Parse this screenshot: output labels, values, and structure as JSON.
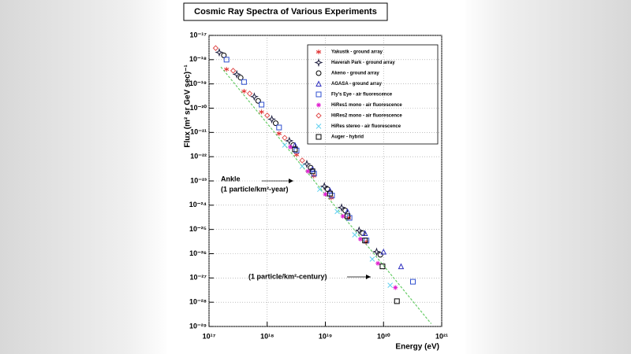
{
  "chart_data": {
    "type": "scatter",
    "title": "Cosmic Ray Spectra of Various Experiments",
    "x_label": "Energy (eV)",
    "y_label": "Flux (m² sr GeV sec)⁻¹",
    "x_log": true,
    "y_log": true,
    "grid": true,
    "legend_position": "upper right",
    "xlim": [
      1e+17,
      1e+21
    ],
    "ylim": [
      1e-29,
      1e-17
    ],
    "xticks": [
      {
        "value": 1e+17,
        "label": "10¹⁷"
      },
      {
        "value": 1e+18,
        "label": "10¹⁸"
      },
      {
        "value": 1e+19,
        "label": "10¹⁹"
      },
      {
        "value": 1e+20,
        "label": "10²⁰"
      },
      {
        "value": 1e+21,
        "label": "10²¹"
      }
    ],
    "yticks": [
      {
        "value": 1e-29,
        "label": "10⁻²⁹"
      },
      {
        "value": 1e-28,
        "label": "10⁻²⁸"
      },
      {
        "value": 1e-27,
        "label": "10⁻²⁷"
      },
      {
        "value": 1e-26,
        "label": "10⁻²⁶"
      },
      {
        "value": 1e-25,
        "label": "10⁻²⁵"
      },
      {
        "value": 1e-24,
        "label": "10⁻²⁴"
      },
      {
        "value": 1e-23,
        "label": "10⁻²³"
      },
      {
        "value": 1e-22,
        "label": "10⁻²²"
      },
      {
        "value": 1e-21,
        "label": "10⁻²¹"
      },
      {
        "value": 1e-20,
        "label": "10⁻²⁰"
      },
      {
        "value": 1e-19,
        "label": "10⁻¹⁹"
      },
      {
        "value": 1e-18,
        "label": "10⁻¹⁸"
      },
      {
        "value": 1e-17,
        "label": "10⁻¹⁷"
      }
    ],
    "annotations": [
      "Ankle",
      "(1 particle/km²-year)",
      "(1 particle/km²-century)"
    ],
    "fit_line": {
      "color": "#66cc66",
      "x": [
        1.6e+17,
        6.6e+20
      ],
      "y": [
        5e-19,
        1.3e-29
      ]
    },
    "series": [
      {
        "name": "Yakustk - ground array",
        "color": "#e03030",
        "marker": "star",
        "x": [
          2e+17,
          4e+17,
          8e+17,
          1.6e+18,
          3.2e+18,
          6.3e+18,
          1.26e+19,
          2.5e+19,
          5e+19
        ],
        "values": [
          4e-19,
          5e-20,
          7e-21,
          9e-22,
          1.2e-22,
          1.6e-23,
          2e-24,
          3e-25,
          3e-26
        ]
      },
      {
        "name": "Haverah Park - ground array",
        "color": "#202040",
        "marker": "cross4",
        "x": [
          1.5e+17,
          3e+17,
          6e+17,
          1.2e+18,
          2.4e+18,
          4.8e+18,
          9.6e+18,
          1.9e+19,
          3.8e+19,
          7.6e+19
        ],
        "values": [
          2e-18,
          2.5e-19,
          3e-20,
          3.5e-21,
          4.5e-22,
          5e-23,
          6e-24,
          8e-25,
          9e-26,
          1.2e-26
        ]
      },
      {
        "name": "Akeno - ground array",
        "color": "#000000",
        "marker": "circle",
        "x": [
          1.8e+17,
          3.5e+17,
          7e+17,
          1.4e+18,
          2.8e+18,
          5.6e+18,
          1.1e+19,
          2.2e+19,
          4.4e+19,
          8.8e+19
        ],
        "values": [
          1.5e-18,
          1.8e-19,
          2e-20,
          2.4e-21,
          3e-22,
          3.5e-23,
          4.5e-24,
          6e-25,
          7e-26,
          9e-27
        ]
      },
      {
        "name": "AGASA - ground array",
        "color": "#3030c0",
        "marker": "triangle",
        "x": [
          3e+18,
          6e+18,
          1.2e+19,
          2.4e+19,
          4.8e+19,
          1e+20,
          2e+20
        ],
        "values": [
          3e-22,
          3e-23,
          4e-24,
          5.5e-25,
          7e-26,
          1.2e-26,
          3e-27
        ]
      },
      {
        "name": "Fly's Eye - air fluorescence",
        "color": "#3050d0",
        "marker": "square",
        "x": [
          2e+17,
          4e+17,
          8e+17,
          1.6e+18,
          3.2e+18,
          6.4e+18,
          1.3e+19,
          2.6e+19,
          5.1e+19,
          3.2e+20
        ],
        "values": [
          1e-18,
          1.2e-19,
          1.4e-20,
          1.6e-21,
          1.8e-22,
          2e-23,
          2.5e-24,
          3e-25,
          3.5e-26,
          7e-28
        ]
      },
      {
        "name": "HiRes1 mono - air fluorescence",
        "color": "#e020d0",
        "marker": "asterisk",
        "x": [
          2.5e+18,
          5e+18,
          1e+19,
          2e+19,
          4e+19,
          8e+19,
          1.6e+20
        ],
        "values": [
          2.5e-22,
          2.5e-23,
          2.8e-24,
          3.5e-25,
          4e-26,
          4e-27,
          4e-28
        ]
      },
      {
        "name": "HiRes2 mono - air fluorescence",
        "color": "#e05050",
        "marker": "diamond",
        "x": [
          1.3e+17,
          2.6e+17,
          5e+17,
          1e+18,
          2e+18,
          4e+18
        ],
        "values": [
          3e-18,
          3.5e-19,
          4e-20,
          5e-21,
          6e-22,
          7e-23
        ]
      },
      {
        "name": "HiRes stereo - air fluorescence",
        "color": "#60d0f0",
        "marker": "cross",
        "x": [
          2e+18,
          4e+18,
          8e+18,
          1.6e+19,
          3.2e+19,
          6.4e+19,
          1.3e+20
        ],
        "values": [
          3e-22,
          4e-23,
          4.5e-24,
          5.5e-25,
          6e-26,
          6e-27,
          5e-28
        ]
      },
      {
        "name": "Auger - hybrid",
        "color": "#000000",
        "marker": "square",
        "x": [
          3e+18,
          6e+18,
          1.2e+19,
          2.4e+19,
          4.8e+19,
          9.6e+19,
          1.7e+20
        ],
        "values": [
          2e-22,
          2.5e-23,
          3e-24,
          3.5e-25,
          3.5e-26,
          3e-27,
          1.1e-28
        ]
      }
    ]
  }
}
